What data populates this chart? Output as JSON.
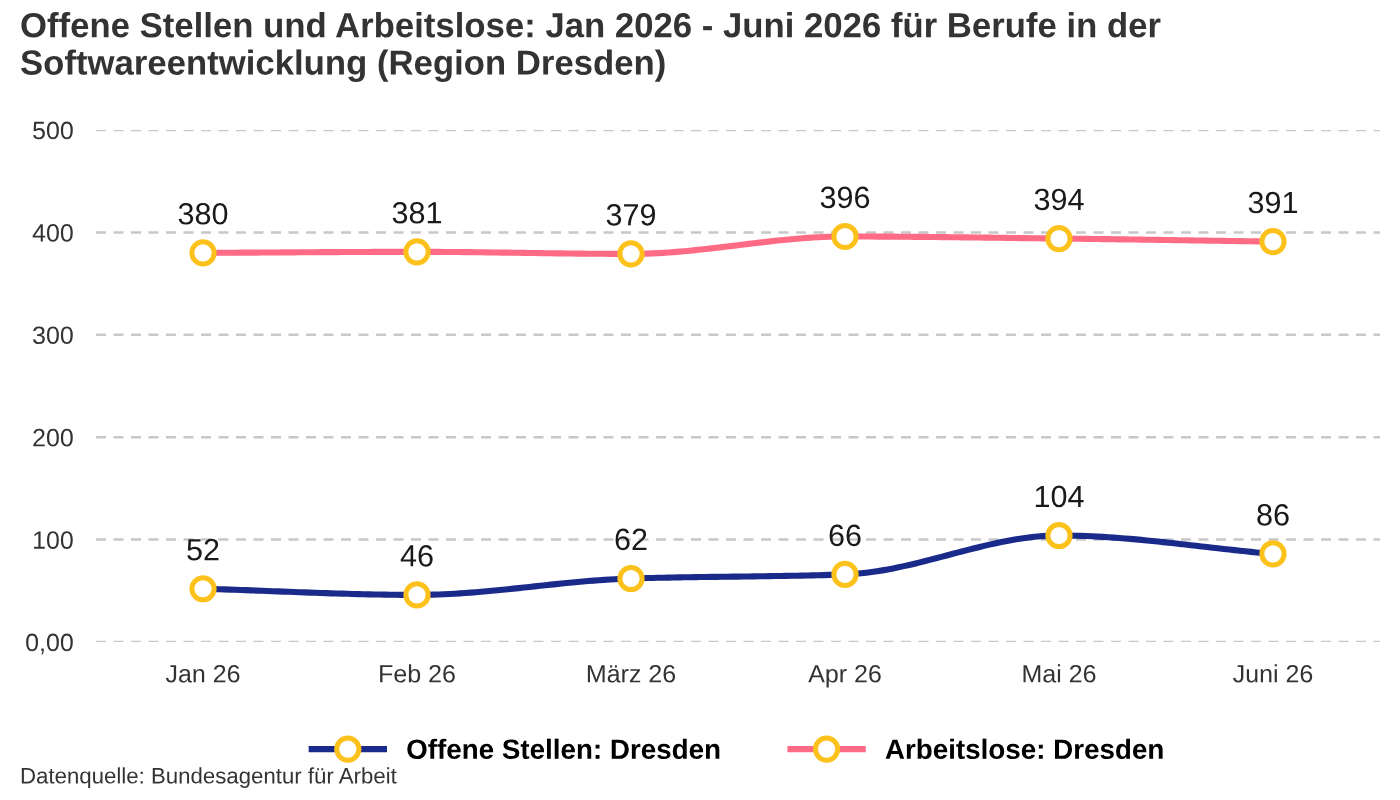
{
  "chart_data": {
    "type": "line",
    "title": "Offene Stellen und Arbeitslose: Jan 2026 - Juni 2026 für Berufe in der Softwareentwicklung (Region Dresden)",
    "categories": [
      "Jan 26",
      "Feb 26",
      "März 26",
      "Apr 26",
      "Mai 26",
      "Juni 26"
    ],
    "series": [
      {
        "name": "Offene Stellen: Dresden",
        "color": "#1a2a8a",
        "values": [
          52,
          46,
          62,
          66,
          104,
          86
        ]
      },
      {
        "name": "Arbeitslose: Dresden",
        "color": "#ff6b85",
        "values": [
          380,
          381,
          379,
          396,
          394,
          391
        ]
      }
    ],
    "ylim": [
      0,
      500
    ],
    "yticks": [
      {
        "value": 0,
        "label": "0,00"
      },
      100,
      200,
      300,
      400,
      500
    ],
    "grid": "y",
    "legend": "bottom",
    "marker": "circle",
    "line_style": "solid",
    "data_labels": true,
    "annotations": [
      "Datenquelle: Bundesagentur für Arbeit"
    ]
  }
}
